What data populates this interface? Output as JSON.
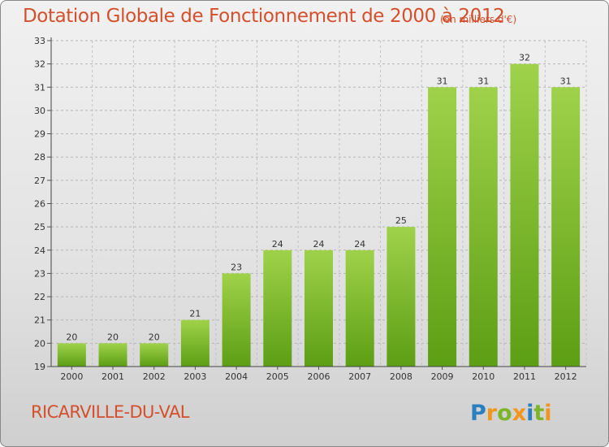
{
  "title": "Dotation Globale de Fonctionnement de 2000 à 2012",
  "subtitle": "(en milliers d'€)",
  "place": "RICARVILLE-DU-VAL",
  "logo": {
    "text": "Proxiti",
    "letters": [
      "P",
      "r",
      "o",
      "x",
      "i",
      "t",
      "i"
    ]
  },
  "colors": {
    "title": "#d4502c",
    "bar_top": "#9fd24a",
    "bar_bottom": "#5c9e14",
    "logo_blue": "#2a7fc0",
    "logo_orange": "#f0961e",
    "logo_green": "#7cb52a"
  },
  "chart_data": {
    "type": "bar",
    "title": "Dotation Globale de Fonctionnement de 2000 à 2012",
    "subtitle": "(en milliers d'€)",
    "categories": [
      "2000",
      "2001",
      "2002",
      "2003",
      "2004",
      "2005",
      "2006",
      "2007",
      "2008",
      "2009",
      "2010",
      "2011",
      "2012"
    ],
    "values": [
      20,
      20,
      20,
      21,
      23,
      24,
      24,
      24,
      25,
      31,
      31,
      32,
      31
    ],
    "data_labels": [
      "20",
      "20",
      "20",
      "21",
      "23",
      "24",
      "24",
      "24",
      "25",
      "31",
      "31",
      "32",
      "31"
    ],
    "ylim": [
      19,
      33
    ],
    "yticks": [
      "19",
      "20",
      "21",
      "22",
      "23",
      "24",
      "25",
      "26",
      "27",
      "28",
      "29",
      "30",
      "31",
      "32",
      "33"
    ],
    "grid": true,
    "legend": "none"
  }
}
